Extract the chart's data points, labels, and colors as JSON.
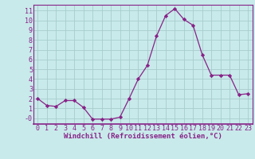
{
  "x": [
    0,
    1,
    2,
    3,
    4,
    5,
    6,
    7,
    8,
    9,
    10,
    11,
    12,
    13,
    14,
    15,
    16,
    17,
    18,
    19,
    20,
    21,
    22,
    23
  ],
  "y": [
    2.0,
    1.3,
    1.2,
    1.8,
    1.8,
    1.1,
    -0.1,
    -0.1,
    -0.1,
    0.1,
    2.0,
    4.0,
    5.4,
    8.4,
    10.5,
    11.2,
    10.1,
    9.5,
    6.5,
    4.4,
    4.4,
    4.4,
    2.4,
    2.5
  ],
  "line_color": "#882288",
  "marker": "D",
  "marker_size": 2.2,
  "bg_color": "#c8eaea",
  "grid_color": "#a8cccc",
  "xlabel": "Windchill (Refroidissement éolien,°C)",
  "xlabel_color": "#882288",
  "tick_color": "#882288",
  "xlim": [
    -0.5,
    23.5
  ],
  "ylim": [
    -0.6,
    11.6
  ],
  "ytick_labels": [
    "-0",
    "1",
    "2",
    "3",
    "4",
    "5",
    "6",
    "7",
    "8",
    "9",
    "10",
    "11"
  ],
  "ytick_vals": [
    0,
    1,
    2,
    3,
    4,
    5,
    6,
    7,
    8,
    9,
    10,
    11
  ],
  "xticks": [
    0,
    1,
    2,
    3,
    4,
    5,
    6,
    7,
    8,
    9,
    10,
    11,
    12,
    13,
    14,
    15,
    16,
    17,
    18,
    19,
    20,
    21,
    22,
    23
  ],
  "font_size_label": 6.5,
  "font_size_tick": 6.0
}
